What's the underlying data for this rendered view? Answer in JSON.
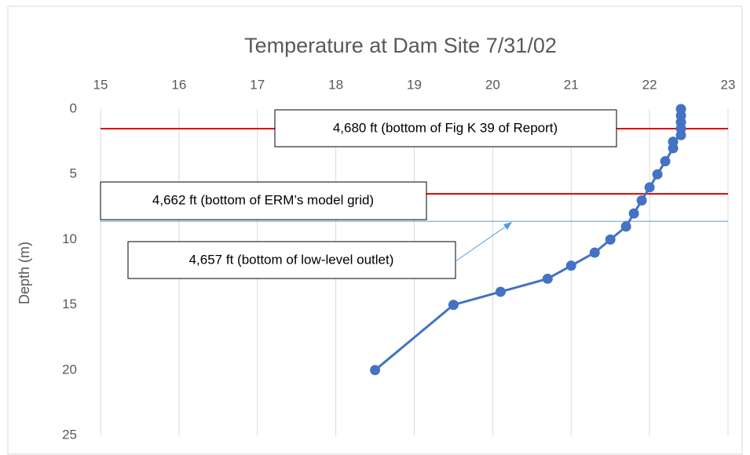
{
  "chart_data": {
    "type": "line",
    "title": "Temperature at Dam Site 7/31/02",
    "y_label": "Depth (m)",
    "x": [
      22.4,
      22.4,
      22.4,
      22.4,
      22.4,
      22.3,
      22.3,
      22.2,
      22.1,
      22.0,
      21.9,
      21.8,
      21.7,
      21.5,
      21.3,
      21.0,
      20.7,
      20.1,
      19.5,
      18.5
    ],
    "series": [
      {
        "color": "#4472c4",
        "values": [
          0,
          0.5,
          1,
          1.5,
          2,
          2.5,
          3,
          4,
          5,
          6,
          7,
          8,
          9,
          10,
          11,
          12,
          13,
          14,
          15,
          20
        ]
      }
    ],
    "xlim": [
      15,
      23
    ],
    "xticks": [
      15,
      16,
      17,
      18,
      19,
      20,
      21,
      22,
      23
    ],
    "ylim": [
      0,
      25
    ],
    "yticks": [
      0,
      5,
      10,
      15,
      20,
      25
    ],
    "y_inverted": true,
    "x_axis_position": "top",
    "grid": true,
    "reference_lines": [
      {
        "value": 1.5,
        "color": "#e00000"
      },
      {
        "value": 6.5,
        "color": "#e00000"
      },
      {
        "value": 8.6,
        "color": "#5b9bd5"
      }
    ],
    "annotations": [
      "4,680 ft (bottom of Fig K 39 of Report)",
      "4,662 ft (bottom of ERM’s model grid)",
      "4,657 ft (bottom of low-level outlet)"
    ]
  }
}
